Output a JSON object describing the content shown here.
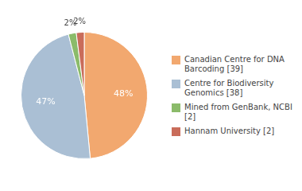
{
  "chart_data": {
    "type": "pie",
    "categories": [
      "Canadian Centre for DNA\nBarcoding [39]",
      "Centre for Biodiversity\nGenomics [38]",
      "Mined from GenBank, NCBI [2]",
      "Hannam University [2]"
    ],
    "values": [
      48,
      47,
      2,
      2
    ],
    "value_labels": [
      "48%",
      "47%",
      "2%",
      "2%"
    ],
    "colors": [
      "#F2A86F",
      "#AABFD4",
      "#8BBB6A",
      "#C96C5A"
    ],
    "data_labels": true,
    "legend": "right"
  }
}
